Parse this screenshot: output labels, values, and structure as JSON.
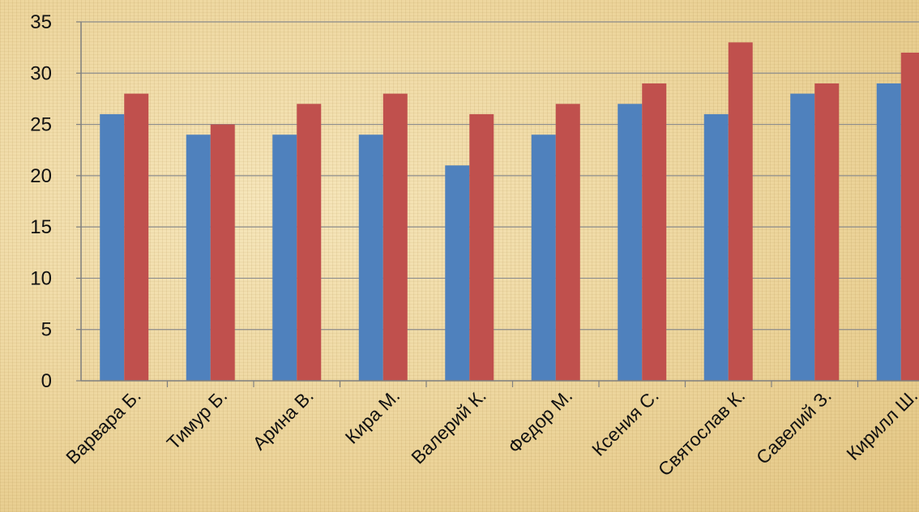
{
  "chart_data": {
    "type": "bar",
    "categories": [
      "Варвара Б.",
      "Тимур Б.",
      "Арина В.",
      "Кира М.",
      "Валерий К.",
      "Федор М.",
      "Ксения С.",
      "Святослав К.",
      "Савелий З.",
      "Кирилл Ш."
    ],
    "series": [
      {
        "values": [
          26,
          24,
          24,
          24,
          21,
          24,
          27,
          26,
          28,
          29
        ],
        "color": "#4f81bd"
      },
      {
        "values": [
          28,
          25,
          27,
          28,
          26,
          27,
          29,
          33,
          29,
          32
        ],
        "color": "#c0504d"
      }
    ],
    "ylim": [
      0,
      35
    ],
    "yticks": [
      0,
      5,
      10,
      15,
      20,
      25,
      30,
      35
    ],
    "grid": true,
    "legend": "none"
  }
}
